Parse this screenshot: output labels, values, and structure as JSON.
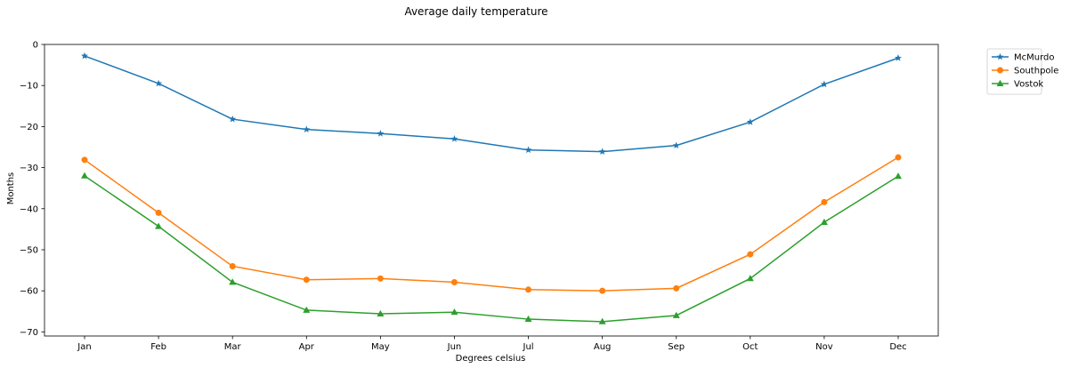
{
  "chart_data": {
    "type": "line",
    "title": "Average daily temperature",
    "xlabel": "Degrees celsius",
    "ylabel": "Months",
    "categories": [
      "Jan",
      "Feb",
      "Mar",
      "Apr",
      "May",
      "Jun",
      "Jul",
      "Aug",
      "Sep",
      "Oct",
      "Nov",
      "Dec"
    ],
    "ylim": [
      -71,
      0
    ],
    "yticks": [
      0,
      -10,
      -20,
      -30,
      -40,
      -50,
      -60,
      -70
    ],
    "grid": false,
    "legend_position": "outside-top-right",
    "series": [
      {
        "name": "McMurdo",
        "color": "#1f77b4",
        "marker": "star",
        "values": [
          -2.8,
          -9.5,
          -18.2,
          -20.7,
          -21.7,
          -23.0,
          -25.7,
          -26.1,
          -24.6,
          -18.9,
          -9.7,
          -3.3
        ]
      },
      {
        "name": "Southpole",
        "color": "#ff7f0e",
        "marker": "circle",
        "values": [
          -28.1,
          -41.0,
          -54.0,
          -57.3,
          -57.0,
          -57.9,
          -59.7,
          -60.0,
          -59.4,
          -51.1,
          -38.4,
          -27.5
        ]
      },
      {
        "name": "Vostok",
        "color": "#2ca02c",
        "marker": "triangle",
        "values": [
          -32.0,
          -44.3,
          -57.9,
          -64.7,
          -65.6,
          -65.2,
          -66.9,
          -67.5,
          -66.0,
          -57.0,
          -43.3,
          -32.1
        ]
      }
    ]
  }
}
